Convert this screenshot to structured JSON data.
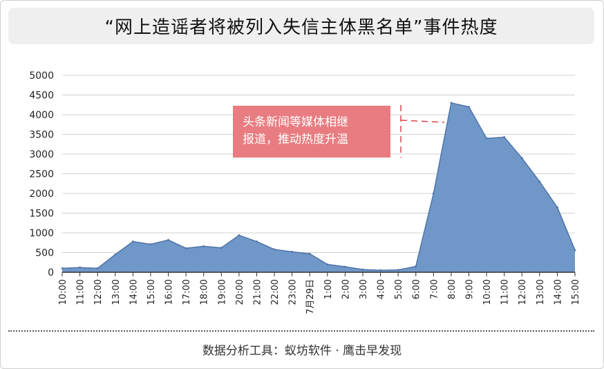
{
  "chart_data": {
    "type": "area",
    "title": "“网上造谣者将被列入失信主体黑名单”事件热度",
    "xlabel": "",
    "ylabel": "",
    "ylim": [
      0,
      5000
    ],
    "yticks": [
      "0",
      "500",
      "1000",
      "1500",
      "2000",
      "2500",
      "3000",
      "3500",
      "4000",
      "4500",
      "5000"
    ],
    "grid": true,
    "legend": "none",
    "categories": [
      "10:00",
      "11:00",
      "12:00",
      "13:00",
      "14:00",
      "15:00",
      "16:00",
      "17:00",
      "18:00",
      "19:00",
      "20:00",
      "21:00",
      "22:00",
      "23:00",
      "7月29日",
      "1:00",
      "2:00",
      "3:00",
      "4:00",
      "5:00",
      "6:00",
      "7:00",
      "8:00",
      "9:00",
      "10:00",
      "11:00",
      "12:00",
      "13:00",
      "14:00",
      "15:00"
    ],
    "series": [
      {
        "values": [
          100,
          120,
          100,
          450,
          780,
          710,
          820,
          610,
          660,
          620,
          940,
          780,
          580,
          520,
          470,
          200,
          140,
          70,
          50,
          60,
          150,
          2000,
          4300,
          4200,
          3400,
          3430,
          2900,
          2300,
          1650,
          560
        ],
        "color": "#6f97c7",
        "stroke": "#4f74a8"
      }
    ],
    "annotation": {
      "text_line1": "头条新闻等媒体相继",
      "text_line2": "报道，推动热度升温",
      "bg_color": "#e87c80",
      "text_color": "#ffffff",
      "line_color": "#d9434b"
    }
  },
  "footer": {
    "source": "数据分析工具：蚁坊软件 · 鹰击早发现"
  }
}
